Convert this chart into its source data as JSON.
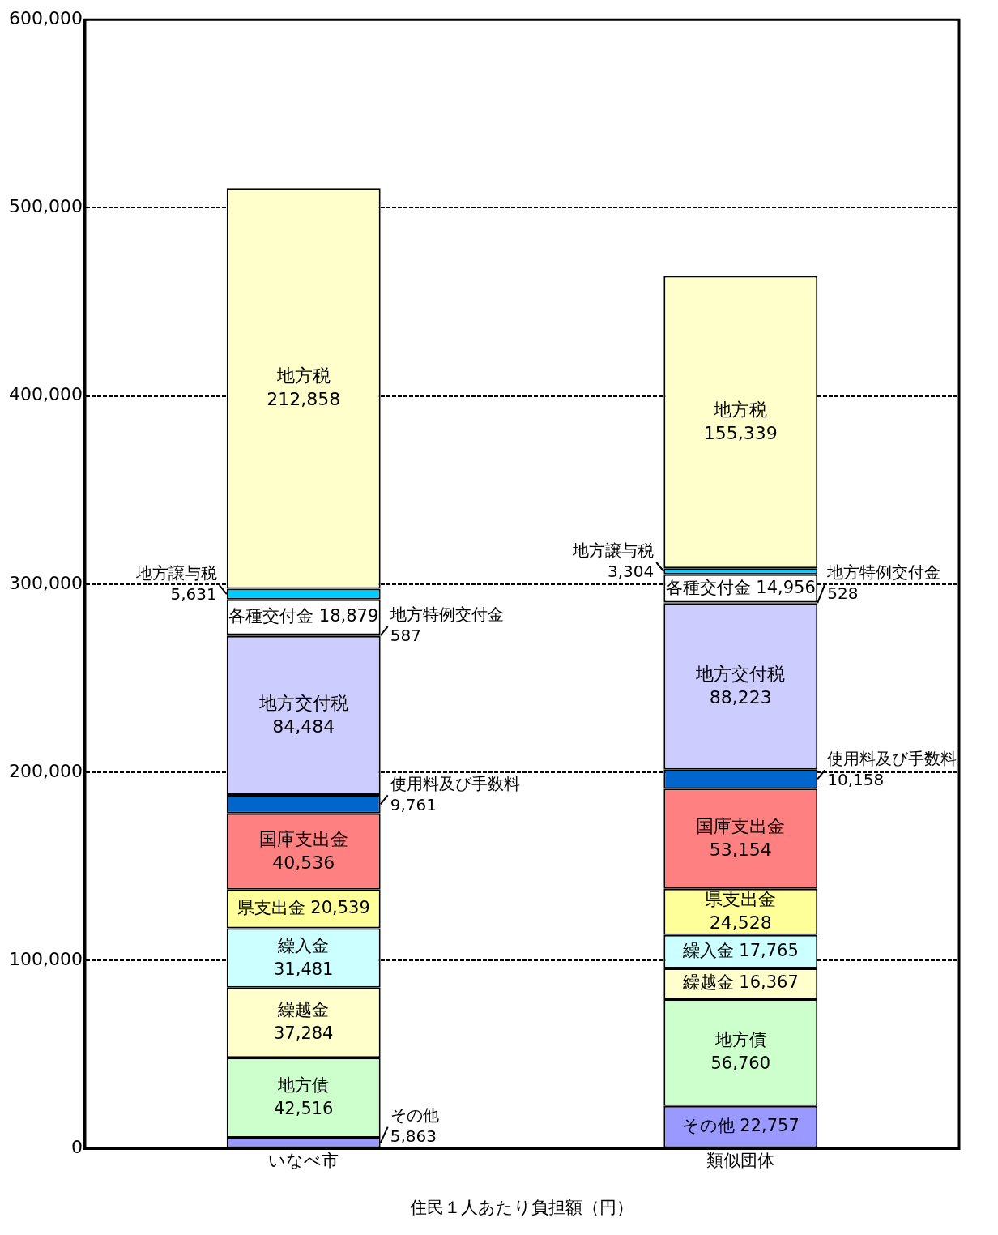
{
  "chart_data": {
    "type": "bar",
    "stacked": true,
    "categories": [
      "いなべ市",
      "類似団体"
    ],
    "xlabel": "住民１人あたり負担額（円）",
    "ylim": [
      0,
      600000
    ],
    "yticks": [
      {
        "value": 0,
        "label": "0"
      },
      {
        "value": 100000,
        "label": "100,000"
      },
      {
        "value": 200000,
        "label": "200,000"
      },
      {
        "value": 300000,
        "label": "300,000"
      },
      {
        "value": 400000,
        "label": "400,000"
      },
      {
        "value": 500000,
        "label": "500,000"
      },
      {
        "value": 600000,
        "label": "600,000"
      }
    ],
    "grid": "y",
    "legend": false,
    "series": [
      {
        "name": "その他",
        "color": "#9999ff",
        "values": [
          5863,
          22757
        ],
        "value_labels": [
          "5,863",
          "22,757"
        ]
      },
      {
        "name": "地方債",
        "color": "#ccffcc",
        "values": [
          42516,
          56760
        ],
        "value_labels": [
          "42,516",
          "56,760"
        ]
      },
      {
        "name": "繰越金",
        "color": "#ffffcc",
        "values": [
          37284,
          16367
        ],
        "value_labels": [
          "37,284",
          "16,367"
        ]
      },
      {
        "name": "繰入金",
        "color": "#ccffff",
        "values": [
          31481,
          17765
        ],
        "value_labels": [
          "31,481",
          "17,765"
        ]
      },
      {
        "name": "県支出金",
        "color": "#ffff99",
        "values": [
          20539,
          24528
        ],
        "value_labels": [
          "20,539",
          "24,528"
        ]
      },
      {
        "name": "国庫支出金",
        "color": "#ff8080",
        "values": [
          40536,
          53154
        ],
        "value_labels": [
          "40,536",
          "53,154"
        ]
      },
      {
        "name": "使用料及び手数料",
        "color": "#0066cc",
        "values": [
          9761,
          10158
        ],
        "value_labels": [
          "9,761",
          "10,158"
        ]
      },
      {
        "name": "地方交付税",
        "color": "#ccccff",
        "values": [
          84484,
          88223
        ],
        "value_labels": [
          "84,484",
          "88,223"
        ]
      },
      {
        "name": "地方特例交付金",
        "color": "#000000",
        "values": [
          587,
          528
        ],
        "value_labels": [
          "587",
          "528"
        ]
      },
      {
        "name": "各種交付金",
        "color": "#ffffff",
        "values": [
          18879,
          14956
        ],
        "value_labels": [
          "18,879",
          "14,956"
        ]
      },
      {
        "name": "地方譲与税",
        "color": "#00ccff",
        "values": [
          5631,
          3304
        ],
        "value_labels": [
          "5,631",
          "3,304"
        ]
      },
      {
        "name": "地方税",
        "color": "#ffffcc",
        "values": [
          212858,
          155339
        ],
        "value_labels": [
          "212,858",
          "155,339"
        ]
      }
    ]
  }
}
